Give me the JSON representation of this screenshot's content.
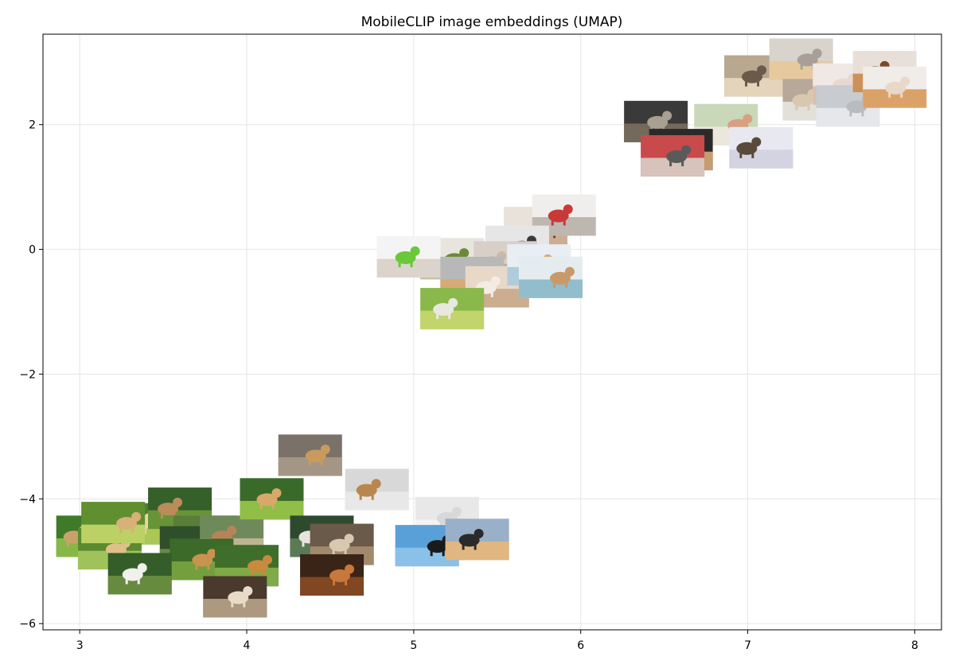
{
  "chart_data": {
    "type": "scatter",
    "title": "MobileCLIP image embeddings (UMAP)",
    "xlabel": "",
    "ylabel": "",
    "xlim": [
      2.78,
      8.16
    ],
    "ylim": [
      -6.1,
      3.45
    ],
    "xticks": [
      3,
      4,
      5,
      6,
      7,
      8
    ],
    "yticks": [
      -6,
      -4,
      -2,
      0,
      2
    ],
    "xtick_labels": [
      "3",
      "4",
      "5",
      "6",
      "7",
      "8"
    ],
    "ytick_labels": [
      "−6",
      "−4",
      "−2",
      "0",
      "2"
    ],
    "grid": true,
    "marker": "image-thumbnail",
    "points": [
      {
        "x": 3.05,
        "y": -4.6,
        "scene": "dog-grass",
        "colors": [
          "#3f7a2a",
          "#8fbf4a",
          "#c9a26b"
        ]
      },
      {
        "x": 3.38,
        "y": -4.4,
        "scene": "dog-grass",
        "colors": [
          "#4b7f2d",
          "#b7cf5a",
          "#e8d6a8"
        ]
      },
      {
        "x": 3.18,
        "y": -4.8,
        "scene": "dog-grass",
        "colors": [
          "#5a8b2e",
          "#a7c860",
          "#e0c08a"
        ]
      },
      {
        "x": 3.6,
        "y": -4.15,
        "scene": "dog-grass",
        "colors": [
          "#36602a",
          "#6e9a3a",
          "#b98c5a"
        ]
      },
      {
        "x": 3.75,
        "y": -4.6,
        "scene": "dog-grass",
        "colors": [
          "#5b7d3a",
          "#9dbb6a",
          "#b9834e"
        ]
      },
      {
        "x": 3.67,
        "y": -4.77,
        "scene": "dog-grass",
        "colors": [
          "#2f4f2a",
          "#6f8f4a",
          "#8a6a4a"
        ]
      },
      {
        "x": 3.91,
        "y": -4.6,
        "scene": "dog-grass",
        "colors": [
          "#6f8a5a",
          "#c7b89a",
          "#b9835a"
        ]
      },
      {
        "x": 3.73,
        "y": -4.97,
        "scene": "dog-grass",
        "colors": [
          "#3c6a28",
          "#7aa540",
          "#c8934e"
        ]
      },
      {
        "x": 4.0,
        "y": -5.07,
        "scene": "dog-grass",
        "colors": [
          "#3e6e2a",
          "#86b04a",
          "#c88a3e"
        ]
      },
      {
        "x": 3.36,
        "y": -5.2,
        "scene": "dog-grass",
        "colors": [
          "#345d2a",
          "#6d9040",
          "#f0f0ec"
        ]
      },
      {
        "x": 3.93,
        "y": -5.57,
        "scene": "dog-outdoor",
        "colors": [
          "#4a3a2e",
          "#b8a488",
          "#e8dcc8"
        ]
      },
      {
        "x": 3.2,
        "y": -4.38,
        "scene": "dog-grass",
        "colors": [
          "#5f8f2f",
          "#c7d86b",
          "#d8b07a"
        ]
      },
      {
        "x": 4.15,
        "y": -4.0,
        "scene": "dog-grass",
        "colors": [
          "#3a6a2a",
          "#9ac84a",
          "#d8a86a"
        ]
      },
      {
        "x": 4.38,
        "y": -3.3,
        "scene": "dog-outdoor",
        "colors": [
          "#7a7268",
          "#a89a88",
          "#c89a5e"
        ]
      },
      {
        "x": 4.45,
        "y": -4.6,
        "scene": "dog-outdoor",
        "colors": [
          "#2e4a2e",
          "#5f7f5a",
          "#e8e4dc"
        ]
      },
      {
        "x": 4.57,
        "y": -4.73,
        "scene": "dog-outdoor",
        "colors": [
          "#6a5a4a",
          "#a88e70",
          "#d8c8b0"
        ]
      },
      {
        "x": 4.51,
        "y": -5.22,
        "scene": "dog-autumn",
        "colors": [
          "#3a2418",
          "#8a4a24",
          "#c8783a"
        ]
      },
      {
        "x": 4.78,
        "y": -3.85,
        "scene": "dog-studio",
        "colors": [
          "#d8d8d8",
          "#eaeaea",
          "#b8864e"
        ]
      },
      {
        "x": 5.2,
        "y": -4.3,
        "scene": "dog-studio",
        "colors": [
          "#e8e8e8",
          "#f4f4f4",
          "#d8d8d8"
        ]
      },
      {
        "x": 5.08,
        "y": -4.75,
        "scene": "dog-beach",
        "colors": [
          "#5aa0d8",
          "#8ec4ea",
          "#1a1a1a"
        ]
      },
      {
        "x": 5.38,
        "y": -4.65,
        "scene": "dog-sunset",
        "colors": [
          "#9ab0c8",
          "#e8b878",
          "#2a2a2a"
        ]
      },
      {
        "x": 5.23,
        "y": -0.15,
        "scene": "cat-food",
        "colors": [
          "#e8e4de",
          "#c8b8a0",
          "#6a8a3a"
        ]
      },
      {
        "x": 5.73,
        "y": 0.35,
        "scene": "dog-home",
        "colors": [
          "#e8e2da",
          "#c8a888",
          "#5a4a3a"
        ]
      },
      {
        "x": 5.9,
        "y": 0.55,
        "scene": "cat-food",
        "colors": [
          "#f0eeec",
          "#b8b0a8",
          "#c83a3a"
        ]
      },
      {
        "x": 5.62,
        "y": 0.05,
        "scene": "cat-food",
        "colors": [
          "#e6e6e6",
          "#8a8a8a",
          "#3a3a3a"
        ]
      },
      {
        "x": 5.55,
        "y": -0.2,
        "scene": "dog-home",
        "colors": [
          "#d8d0c8",
          "#b8a898",
          "#c8b8a8"
        ]
      },
      {
        "x": 4.97,
        "y": -0.12,
        "scene": "dog-food",
        "colors": [
          "#f4f4f4",
          "#d8d0c8",
          "#6ac83a"
        ]
      },
      {
        "x": 5.35,
        "y": -0.45,
        "scene": "dog-food",
        "colors": [
          "#b8b8b8",
          "#d8a870",
          "#8a8a8a"
        ]
      },
      {
        "x": 5.5,
        "y": -0.6,
        "scene": "dog-home",
        "colors": [
          "#e8d8c8",
          "#c8a888",
          "#f4ece4"
        ]
      },
      {
        "x": 5.75,
        "y": -0.25,
        "scene": "dog-food",
        "colors": [
          "#e8eef4",
          "#a8c8d8",
          "#d8a870"
        ]
      },
      {
        "x": 5.82,
        "y": -0.45,
        "scene": "dog-food",
        "colors": [
          "#e4ecf0",
          "#88b8c8",
          "#c89a6a"
        ]
      },
      {
        "x": 5.23,
        "y": -0.95,
        "scene": "dog-grass",
        "colors": [
          "#8ab84a",
          "#c8d870",
          "#e8e8e0"
        ]
      },
      {
        "x": 6.45,
        "y": 2.05,
        "scene": "cat-sleep",
        "colors": [
          "#3a3a3a",
          "#7a7060",
          "#a8a090"
        ]
      },
      {
        "x": 6.87,
        "y": 2.0,
        "scene": "cat-sleep",
        "colors": [
          "#c8d8b8",
          "#f0e8e0",
          "#d8a080"
        ]
      },
      {
        "x": 6.6,
        "y": 1.6,
        "scene": "cat-sleep",
        "colors": [
          "#2a2a2a",
          "#d8a878",
          "#e8d8c8"
        ]
      },
      {
        "x": 6.55,
        "y": 1.5,
        "scene": "cat-sleep",
        "colors": [
          "#c84a4a",
          "#d8d0c8",
          "#5a5a5a"
        ]
      },
      {
        "x": 7.08,
        "y": 1.63,
        "scene": "cat-sleep",
        "colors": [
          "#e8e8f0",
          "#d0d0e0",
          "#5a4a3a"
        ]
      },
      {
        "x": 7.05,
        "y": 2.78,
        "scene": "dog-bed",
        "colors": [
          "#b8a890",
          "#e8d8c0",
          "#6a5a4a"
        ]
      },
      {
        "x": 7.32,
        "y": 3.05,
        "scene": "dog-bed",
        "colors": [
          "#d8d4cc",
          "#e8c898",
          "#a8a098"
        ]
      },
      {
        "x": 7.4,
        "y": 2.4,
        "scene": "dog-sleep",
        "colors": [
          "#b8a89a",
          "#e8e4e0",
          "#d8c8b0"
        ]
      },
      {
        "x": 7.58,
        "y": 2.65,
        "scene": "dog-sleep",
        "colors": [
          "#f0e8e4",
          "#d8b8a8",
          "#e8d8d0"
        ]
      },
      {
        "x": 7.6,
        "y": 2.3,
        "scene": "dog-sleep",
        "colors": [
          "#c8ccd0",
          "#e8eaec",
          "#b8bcc0"
        ]
      },
      {
        "x": 7.82,
        "y": 2.85,
        "scene": "dog-sleep",
        "colors": [
          "#e8e0d8",
          "#c8884a",
          "#7a4a2a"
        ]
      },
      {
        "x": 7.88,
        "y": 2.6,
        "scene": "dog-sleep",
        "colors": [
          "#f0ece8",
          "#d89a5a",
          "#e8d8c8"
        ]
      }
    ]
  }
}
